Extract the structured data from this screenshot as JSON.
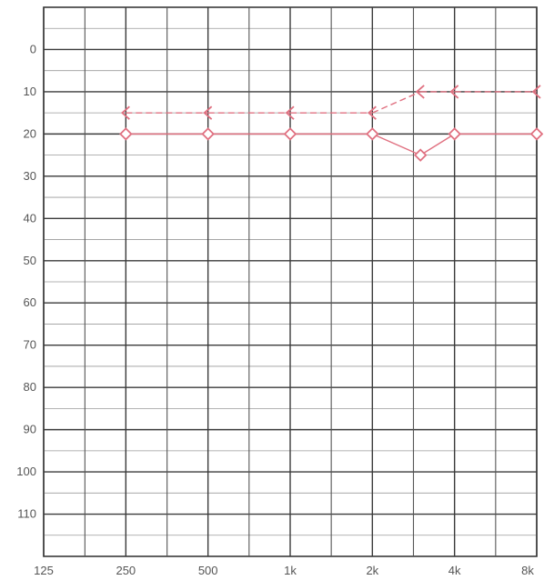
{
  "chart_data": {
    "type": "line",
    "title": "",
    "xlabel": "",
    "ylabel": "",
    "x_scale": "log2",
    "x_ticks": [
      {
        "freq": 125,
        "label": "125"
      },
      {
        "freq": 250,
        "label": "250"
      },
      {
        "freq": 500,
        "label": "500"
      },
      {
        "freq": 1000,
        "label": "1k"
      },
      {
        "freq": 2000,
        "label": "2k"
      },
      {
        "freq": 4000,
        "label": "4k"
      },
      {
        "freq": 8000,
        "label": "8k"
      }
    ],
    "x_half_octaves": [
      177,
      354,
      707,
      1414,
      2828,
      5657
    ],
    "ylim": [
      -10,
      120
    ],
    "y_inverted": true,
    "y_ticks": [
      0,
      10,
      20,
      30,
      40,
      50,
      60,
      70,
      80,
      90,
      100,
      110
    ],
    "y_minor_gridlines": [
      -5,
      5,
      15,
      25,
      35,
      45,
      55,
      65,
      75,
      85,
      95,
      105,
      115
    ],
    "grid": true,
    "series": [
      {
        "marker": "bone-conduction-bracket",
        "line_style": "dashed",
        "color": "#e07080",
        "points": [
          {
            "freq": 250,
            "db": 15
          },
          {
            "freq": 500,
            "db": 15
          },
          {
            "freq": 1000,
            "db": 15
          },
          {
            "freq": 2000,
            "db": 15
          },
          {
            "freq": 3000,
            "db": 10
          },
          {
            "freq": 4000,
            "db": 10
          },
          {
            "freq": 8000,
            "db": 10
          }
        ]
      },
      {
        "marker": "diamond",
        "line_style": "solid",
        "color": "#e07080",
        "points": [
          {
            "freq": 250,
            "db": 20
          },
          {
            "freq": 500,
            "db": 20
          },
          {
            "freq": 1000,
            "db": 20
          },
          {
            "freq": 2000,
            "db": 20
          },
          {
            "freq": 3000,
            "db": 25
          },
          {
            "freq": 4000,
            "db": 20
          },
          {
            "freq": 8000,
            "db": 20
          }
        ]
      }
    ]
  }
}
